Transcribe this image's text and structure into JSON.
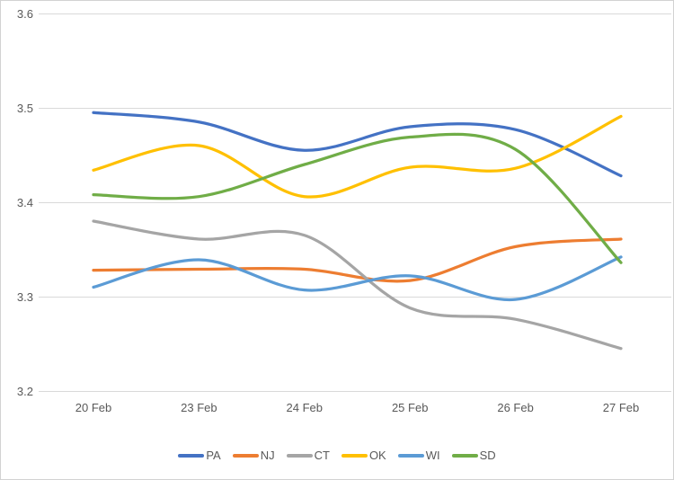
{
  "chart_data": {
    "type": "line",
    "title": "",
    "xlabel": "",
    "ylabel": "",
    "line_style": "smooth",
    "grid": "horizontal",
    "legend_position": "bottom",
    "categories": [
      "20 Feb",
      "23 Feb",
      "24 Feb",
      "25 Feb",
      "26 Feb",
      "27 Feb"
    ],
    "series": [
      {
        "name": "PA",
        "color": "#4472C4",
        "values": [
          3.495,
          3.485,
          3.455,
          3.48,
          3.477,
          3.428
        ]
      },
      {
        "name": "NJ",
        "color": "#ED7D31",
        "values": [
          3.328,
          3.329,
          3.329,
          3.317,
          3.353,
          3.361
        ]
      },
      {
        "name": "CT",
        "color": "#A5A5A5",
        "values": [
          3.38,
          3.361,
          3.365,
          3.288,
          3.276,
          3.245
        ]
      },
      {
        "name": "OK",
        "color": "#FFC000",
        "values": [
          3.434,
          3.46,
          3.406,
          3.437,
          3.436,
          3.491
        ]
      },
      {
        "name": "WI",
        "color": "#5B9BD5",
        "values": [
          3.31,
          3.339,
          3.307,
          3.322,
          3.297,
          3.342
        ]
      },
      {
        "name": "SD",
        "color": "#70AD47",
        "values": [
          3.408,
          3.406,
          3.44,
          3.469,
          3.456,
          3.336
        ]
      }
    ],
    "ylim": [
      3.2,
      3.6
    ],
    "ytick_step": 0.1,
    "y_ticks": [
      "3.6",
      "3.5",
      "3.4",
      "3.3",
      "3.2"
    ]
  },
  "styles": {
    "background": "#FFFFFF",
    "border_color": "#D2D2D2",
    "grid_color": "#D9D9D9",
    "axis_text_color": "#595959",
    "legend_text_color": "#595959"
  }
}
